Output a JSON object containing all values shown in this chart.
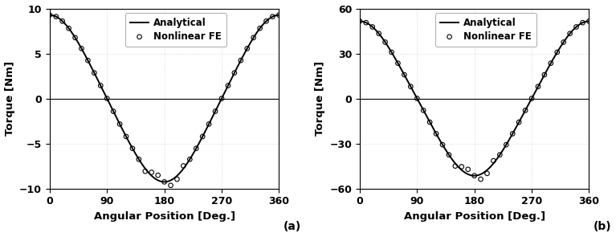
{
  "plot_a": {
    "amplitude": 9.0,
    "ylim": [
      -10,
      10
    ],
    "yticks": [
      -10,
      -5,
      0,
      5,
      10
    ],
    "ylabel": "Torque [Nm]",
    "xlabel": "Angular Position [Deg.]",
    "label_letter": "(a)",
    "legend_labels": [
      "Analytical",
      "Nonlinear FE"
    ],
    "scatter_n": 37,
    "ripple_amp": 0.6,
    "ripple_freq": 7
  },
  "plot_b": {
    "amplitude": 50.0,
    "ylim": [
      -60,
      60
    ],
    "yticks": [
      -60,
      -30,
      0,
      30,
      60
    ],
    "ylabel": "Torque [Nm]",
    "xlabel": "Angular Position [Deg.]",
    "label_letter": "(b)",
    "legend_labels": [
      "Analytical",
      "Nonlinear FE"
    ],
    "scatter_n": 37,
    "ripple_amp": 3.5,
    "ripple_freq": 7
  },
  "xticks": [
    0,
    90,
    180,
    270,
    360
  ],
  "line_color": "#000000",
  "scatter_color": "#000000",
  "grid_color": "#c8c8c8",
  "background_color": "#ffffff",
  "fig_width": 7.67,
  "fig_height": 2.95
}
